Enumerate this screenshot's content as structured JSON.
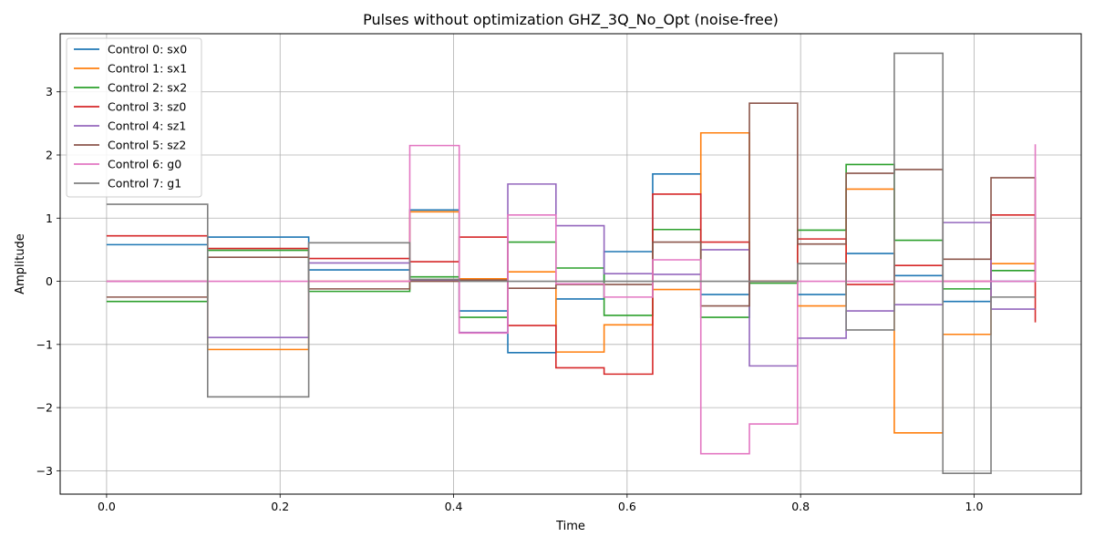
{
  "chart_data": {
    "type": "line",
    "step": "post",
    "title": "Pulses without optimization GHZ_3Q_No_Opt (noise-free)",
    "xlabel": "Time",
    "ylabel": "Amplitude",
    "xlim": [
      -0.0535,
      1.1235
    ],
    "ylim": [
      -3.37,
      3.92
    ],
    "xticks": [
      0.0,
      0.2,
      0.4,
      0.6,
      0.8,
      1.0
    ],
    "xtick_labels": [
      "0.0",
      "0.2",
      "0.4",
      "0.6",
      "0.8",
      "1.0"
    ],
    "yticks": [
      -3,
      -2,
      -1,
      0,
      1,
      2,
      3
    ],
    "ytick_labels": [
      "−3",
      "−2",
      "−1",
      "0",
      "1",
      "2",
      "3"
    ],
    "grid": true,
    "legend_position": "top-left",
    "x": [
      0.0,
      0.1165,
      0.233,
      0.3495,
      0.4065,
      0.4625,
      0.518,
      0.5735,
      0.6295,
      0.685,
      0.741,
      0.7965,
      0.8525,
      0.908,
      0.964,
      1.0195,
      1.0705
    ],
    "series": [
      {
        "name": "Control 0: sx0",
        "color": "#1f77b4",
        "values": [
          0.58,
          0.7,
          0.18,
          1.13,
          -0.47,
          -1.13,
          -0.28,
          0.47,
          1.7,
          -0.21,
          0.0,
          -0.21,
          0.44,
          0.09,
          -0.32,
          0.0,
          0.0
        ]
      },
      {
        "name": "Control 1: sx1",
        "color": "#ff7f0e",
        "values": [
          0.0,
          -1.08,
          0.0,
          1.1,
          0.04,
          0.15,
          -1.12,
          -0.69,
          -0.13,
          2.35,
          0.0,
          -0.39,
          1.46,
          -2.4,
          -0.84,
          0.28,
          0.28
        ]
      },
      {
        "name": "Control 2: sx2",
        "color": "#2ca02c",
        "values": [
          -0.32,
          0.49,
          -0.16,
          0.07,
          -0.57,
          0.62,
          0.21,
          -0.54,
          0.82,
          -0.57,
          -0.03,
          0.81,
          1.85,
          0.65,
          -0.12,
          0.17,
          0.17
        ]
      },
      {
        "name": "Control 3: sz0",
        "color": "#d62728",
        "values": [
          0.72,
          0.52,
          0.36,
          0.31,
          0.7,
          -0.7,
          -1.37,
          -1.47,
          1.38,
          0.62,
          0.0,
          0.67,
          -0.05,
          0.25,
          0.0,
          1.05,
          -0.65
        ]
      },
      {
        "name": "Control 4: sz1",
        "color": "#9467bd",
        "values": [
          0.0,
          -0.89,
          0.29,
          0.02,
          -0.81,
          1.54,
          0.88,
          0.12,
          0.11,
          0.5,
          -1.34,
          -0.9,
          -0.47,
          -0.37,
          0.93,
          -0.44,
          -0.44
        ]
      },
      {
        "name": "Control 5: sz2",
        "color": "#8c564b",
        "values": [
          -0.25,
          0.38,
          -0.12,
          0.0,
          0.02,
          -0.11,
          -0.05,
          -0.05,
          0.62,
          -0.39,
          2.82,
          0.59,
          1.71,
          1.77,
          0.35,
          1.64,
          0.12
        ]
      },
      {
        "name": "Control 6: g0",
        "color": "#e377c2",
        "values": [
          0.0,
          0.0,
          0.0,
          2.15,
          -0.82,
          1.05,
          -0.04,
          -0.25,
          0.34,
          -2.73,
          -2.26,
          0.0,
          0.0,
          0.0,
          0.0,
          0.0,
          2.17
        ]
      },
      {
        "name": "Control 7: g1",
        "color": "#7f7f7f",
        "values": [
          1.22,
          -1.83,
          0.61,
          0.03,
          0.0,
          0.0,
          0.0,
          0.0,
          0.0,
          0.0,
          0.0,
          0.28,
          -0.77,
          3.61,
          -3.04,
          -0.25,
          -0.25
        ]
      }
    ]
  }
}
